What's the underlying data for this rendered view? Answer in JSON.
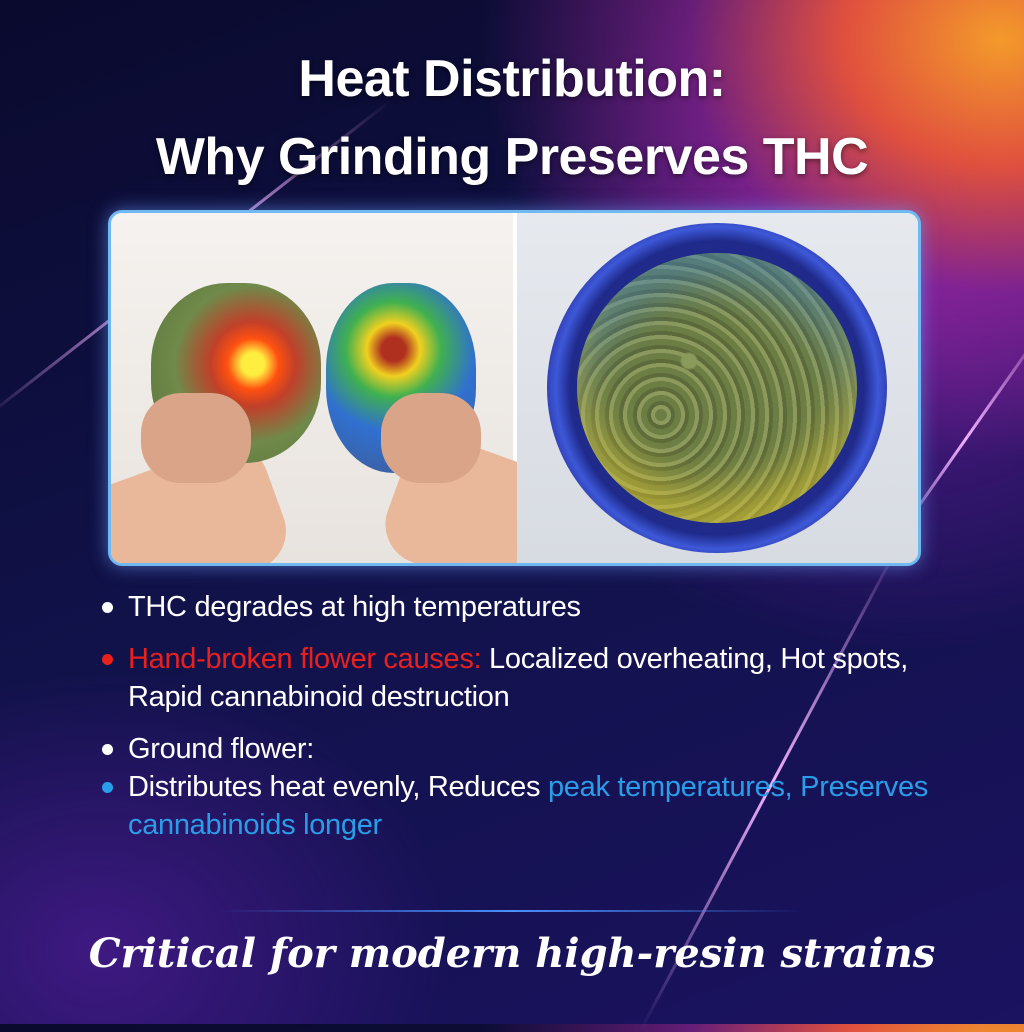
{
  "title": {
    "line1": "Heat Distribution:",
    "line2": "Why Grinding Preserves THC"
  },
  "images": {
    "left": "hand-broken cannabis buds with heat map overlay",
    "right": "ground cannabis flower in bowl with heat map overlay"
  },
  "bullets": [
    {
      "text": "THC degrades at high temperatures"
    },
    {
      "highlight": "Hand-broken flower causes:",
      "text": " Localized overheating, Hot spots, Rapid cannabinoid destruction"
    },
    {
      "text": "Ground flower:"
    },
    {
      "text": "Distributes heat evenly, Reduces ",
      "highlight": "peak temperatures, Preserves cannabinoids longer"
    }
  ],
  "footer": "Critical for modern high-resin strains",
  "colors": {
    "red": "#e8201e",
    "blue": "#2a9de8",
    "background": "#11124a",
    "accent_orange": "#f39a2b"
  }
}
